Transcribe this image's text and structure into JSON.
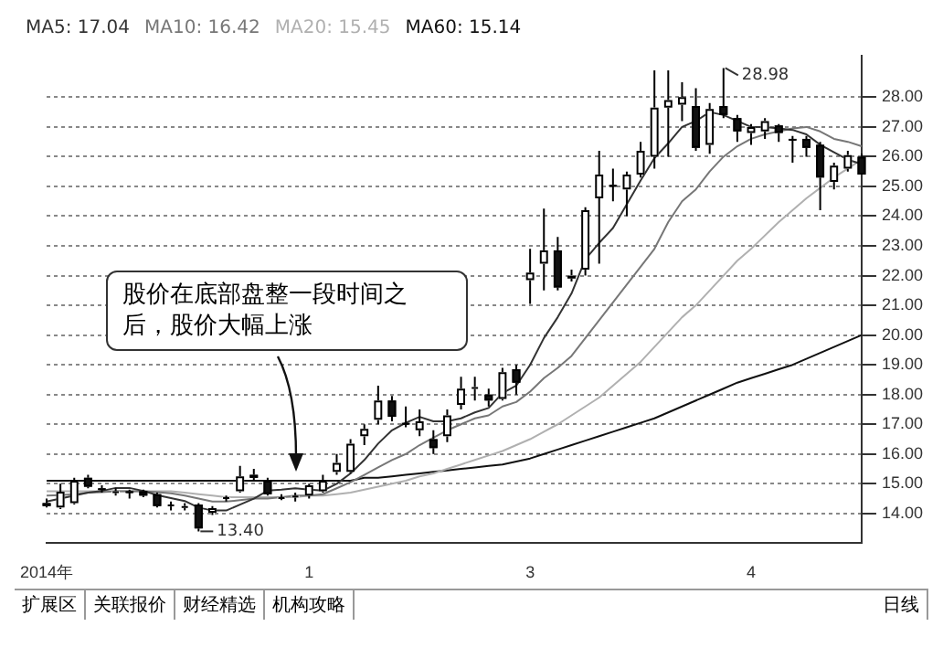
{
  "chart_data": {
    "type": "candlestick",
    "legend": "top left",
    "grid": "y",
    "ylim": [
      13.0,
      29.4
    ],
    "yticks": [
      {
        "value": 14,
        "label": "14.00"
      },
      {
        "value": 15,
        "label": "15.00"
      },
      {
        "value": 16,
        "label": "16.00"
      },
      {
        "value": 17,
        "label": "17.00"
      },
      {
        "value": 18,
        "label": "18.00"
      },
      {
        "value": 19,
        "label": "19.00"
      },
      {
        "value": 20,
        "label": "20.00"
      },
      {
        "value": 21,
        "label": "21.00"
      },
      {
        "value": 22,
        "label": "22.00"
      },
      {
        "value": 23,
        "label": "23.00"
      },
      {
        "value": 24,
        "label": "24.00"
      },
      {
        "value": 25,
        "label": "25.00"
      },
      {
        "value": 26,
        "label": "26.00"
      },
      {
        "value": 27,
        "label": "27.00"
      },
      {
        "value": 28,
        "label": "28.00"
      }
    ],
    "categories": [
      "2014年",
      null,
      null,
      null,
      null,
      null,
      null,
      null,
      null,
      null,
      null,
      null,
      null,
      null,
      null,
      null,
      null,
      null,
      null,
      "1",
      null,
      null,
      null,
      null,
      null,
      null,
      null,
      null,
      null,
      null,
      null,
      null,
      null,
      null,
      null,
      "3",
      null,
      null,
      null,
      null,
      null,
      null,
      null,
      null,
      null,
      null,
      null,
      null,
      null,
      null,
      null,
      "4",
      null,
      null,
      null,
      null,
      null,
      null,
      null,
      null
    ],
    "ohlc": [
      [
        14.35,
        14.5,
        14.2,
        14.25
      ],
      [
        14.2,
        15.0,
        14.15,
        14.73
      ],
      [
        14.35,
        15.2,
        14.3,
        15.1
      ],
      [
        15.2,
        15.3,
        14.85,
        14.9
      ],
      [
        14.85,
        14.95,
        14.7,
        14.8
      ],
      [
        14.75,
        14.85,
        14.6,
        14.75
      ],
      [
        14.75,
        14.8,
        14.5,
        14.7
      ],
      [
        14.75,
        14.8,
        14.55,
        14.6
      ],
      [
        14.65,
        14.7,
        14.2,
        14.25
      ],
      [
        14.3,
        14.4,
        14.1,
        14.3
      ],
      [
        14.25,
        14.35,
        14.1,
        14.25
      ],
      [
        14.3,
        14.35,
        13.4,
        13.5
      ],
      [
        14.03,
        14.25,
        13.95,
        14.18
      ],
      [
        14.5,
        14.6,
        14.4,
        14.55
      ],
      [
        14.75,
        15.6,
        14.7,
        15.25
      ],
      [
        15.3,
        15.5,
        15.1,
        15.2
      ],
      [
        15.1,
        15.2,
        14.6,
        14.65
      ],
      [
        14.55,
        14.65,
        14.45,
        14.55
      ],
      [
        14.55,
        14.7,
        14.4,
        14.6
      ],
      [
        14.6,
        15.0,
        14.5,
        14.95
      ],
      [
        14.75,
        15.3,
        14.7,
        15.1
      ],
      [
        15.4,
        16.0,
        15.3,
        15.7
      ],
      [
        15.4,
        16.5,
        15.35,
        16.35
      ],
      [
        16.6,
        17.0,
        16.3,
        16.85
      ],
      [
        17.15,
        18.3,
        17.0,
        17.8
      ],
      [
        17.8,
        17.95,
        17.1,
        17.25
      ],
      [
        17.05,
        17.6,
        16.9,
        17.0
      ],
      [
        16.8,
        17.5,
        16.6,
        17.1
      ],
      [
        16.5,
        16.8,
        16.0,
        16.2
      ],
      [
        16.6,
        17.5,
        16.4,
        17.3
      ],
      [
        17.65,
        18.6,
        17.5,
        18.2
      ],
      [
        18.2,
        18.6,
        17.8,
        18.25
      ],
      [
        18.0,
        18.2,
        17.6,
        17.8
      ],
      [
        17.85,
        18.9,
        17.8,
        18.75
      ],
      [
        18.85,
        19.0,
        18.0,
        18.4
      ],
      [
        21.85,
        22.9,
        21.05,
        22.1
      ],
      [
        22.4,
        24.25,
        21.5,
        22.85
      ],
      [
        22.85,
        23.3,
        21.5,
        21.6
      ],
      [
        21.9,
        22.2,
        21.8,
        22.0
      ],
      [
        22.2,
        24.3,
        22.0,
        24.2
      ],
      [
        24.6,
        26.2,
        22.4,
        25.4
      ],
      [
        25.05,
        25.6,
        24.5,
        25.0
      ],
      [
        24.9,
        25.5,
        24.0,
        25.4
      ],
      [
        25.4,
        26.5,
        25.3,
        26.2
      ],
      [
        26.0,
        28.9,
        25.6,
        27.65
      ],
      [
        27.65,
        28.9,
        26.0,
        27.9
      ],
      [
        27.75,
        28.5,
        27.2,
        28.0
      ],
      [
        27.7,
        28.3,
        26.2,
        26.3
      ],
      [
        26.4,
        27.8,
        26.1,
        27.6
      ],
      [
        27.7,
        28.98,
        27.3,
        27.4
      ],
      [
        27.3,
        27.4,
        26.5,
        26.85
      ],
      [
        26.8,
        27.1,
        26.4,
        27.0
      ],
      [
        26.85,
        27.3,
        26.6,
        27.2
      ],
      [
        27.05,
        27.1,
        26.5,
        26.8
      ],
      [
        26.6,
        26.7,
        25.8,
        26.55
      ],
      [
        26.6,
        26.7,
        26.0,
        26.3
      ],
      [
        26.4,
        26.5,
        24.2,
        25.3
      ],
      [
        25.15,
        25.8,
        24.9,
        25.7
      ],
      [
        25.6,
        26.2,
        25.5,
        26.05
      ],
      [
        26.0,
        26.1,
        25.4,
        25.4
      ]
    ],
    "series": [
      {
        "type": "line",
        "name": "MA5: 17.04",
        "color": "#333333",
        "values": [
          14.4,
          14.5,
          14.6,
          14.7,
          14.76,
          14.86,
          14.86,
          14.76,
          14.62,
          14.52,
          14.42,
          14.2,
          14.1,
          14.1,
          14.3,
          14.5,
          14.77,
          14.8,
          14.85,
          14.8,
          14.77,
          15.0,
          15.35,
          15.8,
          16.35,
          16.8,
          17.05,
          17.25,
          17.1,
          17.1,
          17.2,
          17.4,
          17.55,
          18.05,
          18.3,
          19.0,
          19.9,
          20.6,
          21.4,
          22.55,
          23.1,
          23.6,
          24.4,
          25.2,
          25.95,
          26.45,
          27.0,
          27.2,
          27.5,
          27.4,
          27.2,
          27.0,
          27.0,
          26.95,
          26.9,
          26.75,
          26.4,
          26.15,
          25.9,
          25.75
        ]
      },
      {
        "type": "line",
        "name": "MA10: 16.42",
        "color": "#777777",
        "values": [
          14.6,
          14.62,
          14.65,
          14.7,
          14.72,
          14.75,
          14.75,
          14.75,
          14.72,
          14.68,
          14.6,
          14.5,
          14.4,
          14.4,
          14.45,
          14.5,
          14.5,
          14.55,
          14.6,
          14.6,
          14.65,
          14.85,
          15.05,
          15.3,
          15.55,
          15.8,
          16.0,
          16.3,
          16.55,
          16.8,
          17.0,
          17.2,
          17.3,
          17.6,
          17.75,
          18.1,
          18.55,
          18.9,
          19.3,
          19.9,
          20.5,
          21.1,
          21.7,
          22.3,
          22.9,
          23.8,
          24.5,
          24.9,
          25.5,
          26.0,
          26.35,
          26.6,
          26.75,
          26.85,
          26.95,
          27.0,
          26.85,
          26.6,
          26.5,
          26.35
        ]
      },
      {
        "type": "line",
        "name": "MA20: 15.45",
        "color": "#b0b0b0",
        "values": [
          14.75,
          14.75,
          14.75,
          14.75,
          14.75,
          14.75,
          14.75,
          14.75,
          14.75,
          14.75,
          14.7,
          14.65,
          14.6,
          14.55,
          14.55,
          14.55,
          14.55,
          14.55,
          14.55,
          14.6,
          14.6,
          14.65,
          14.7,
          14.8,
          14.9,
          15.0,
          15.1,
          15.25,
          15.35,
          15.5,
          15.65,
          15.8,
          15.95,
          16.1,
          16.3,
          16.5,
          16.75,
          17.0,
          17.3,
          17.6,
          17.9,
          18.3,
          18.7,
          19.1,
          19.6,
          20.1,
          20.6,
          21.0,
          21.5,
          22.0,
          22.5,
          22.9,
          23.35,
          23.8,
          24.2,
          24.6,
          24.95,
          25.3,
          25.6,
          25.9
        ]
      },
      {
        "type": "line",
        "name": "MA60: 15.14",
        "color": "#111111",
        "values": [
          15.1,
          15.1,
          15.1,
          15.1,
          15.1,
          15.1,
          15.1,
          15.1,
          15.1,
          15.1,
          15.1,
          15.1,
          15.1,
          15.1,
          15.1,
          15.1,
          15.1,
          15.1,
          15.1,
          15.1,
          15.1,
          15.1,
          15.1,
          15.2,
          15.2,
          15.25,
          15.3,
          15.35,
          15.4,
          15.45,
          15.5,
          15.55,
          15.6,
          15.65,
          15.75,
          15.85,
          16.0,
          16.15,
          16.3,
          16.45,
          16.6,
          16.75,
          16.9,
          17.05,
          17.2,
          17.4,
          17.6,
          17.8,
          18.0,
          18.2,
          18.4,
          18.55,
          18.7,
          18.85,
          19.0,
          19.2,
          19.4,
          19.6,
          19.8,
          20.0
        ]
      }
    ],
    "annotations": [
      "股价在底部盘整一段时间之后，股价大幅上涨",
      "28.98",
      "13.40",
      "扩展区",
      "关联报价",
      "财经精选",
      "机构攻略",
      "日线"
    ]
  }
}
